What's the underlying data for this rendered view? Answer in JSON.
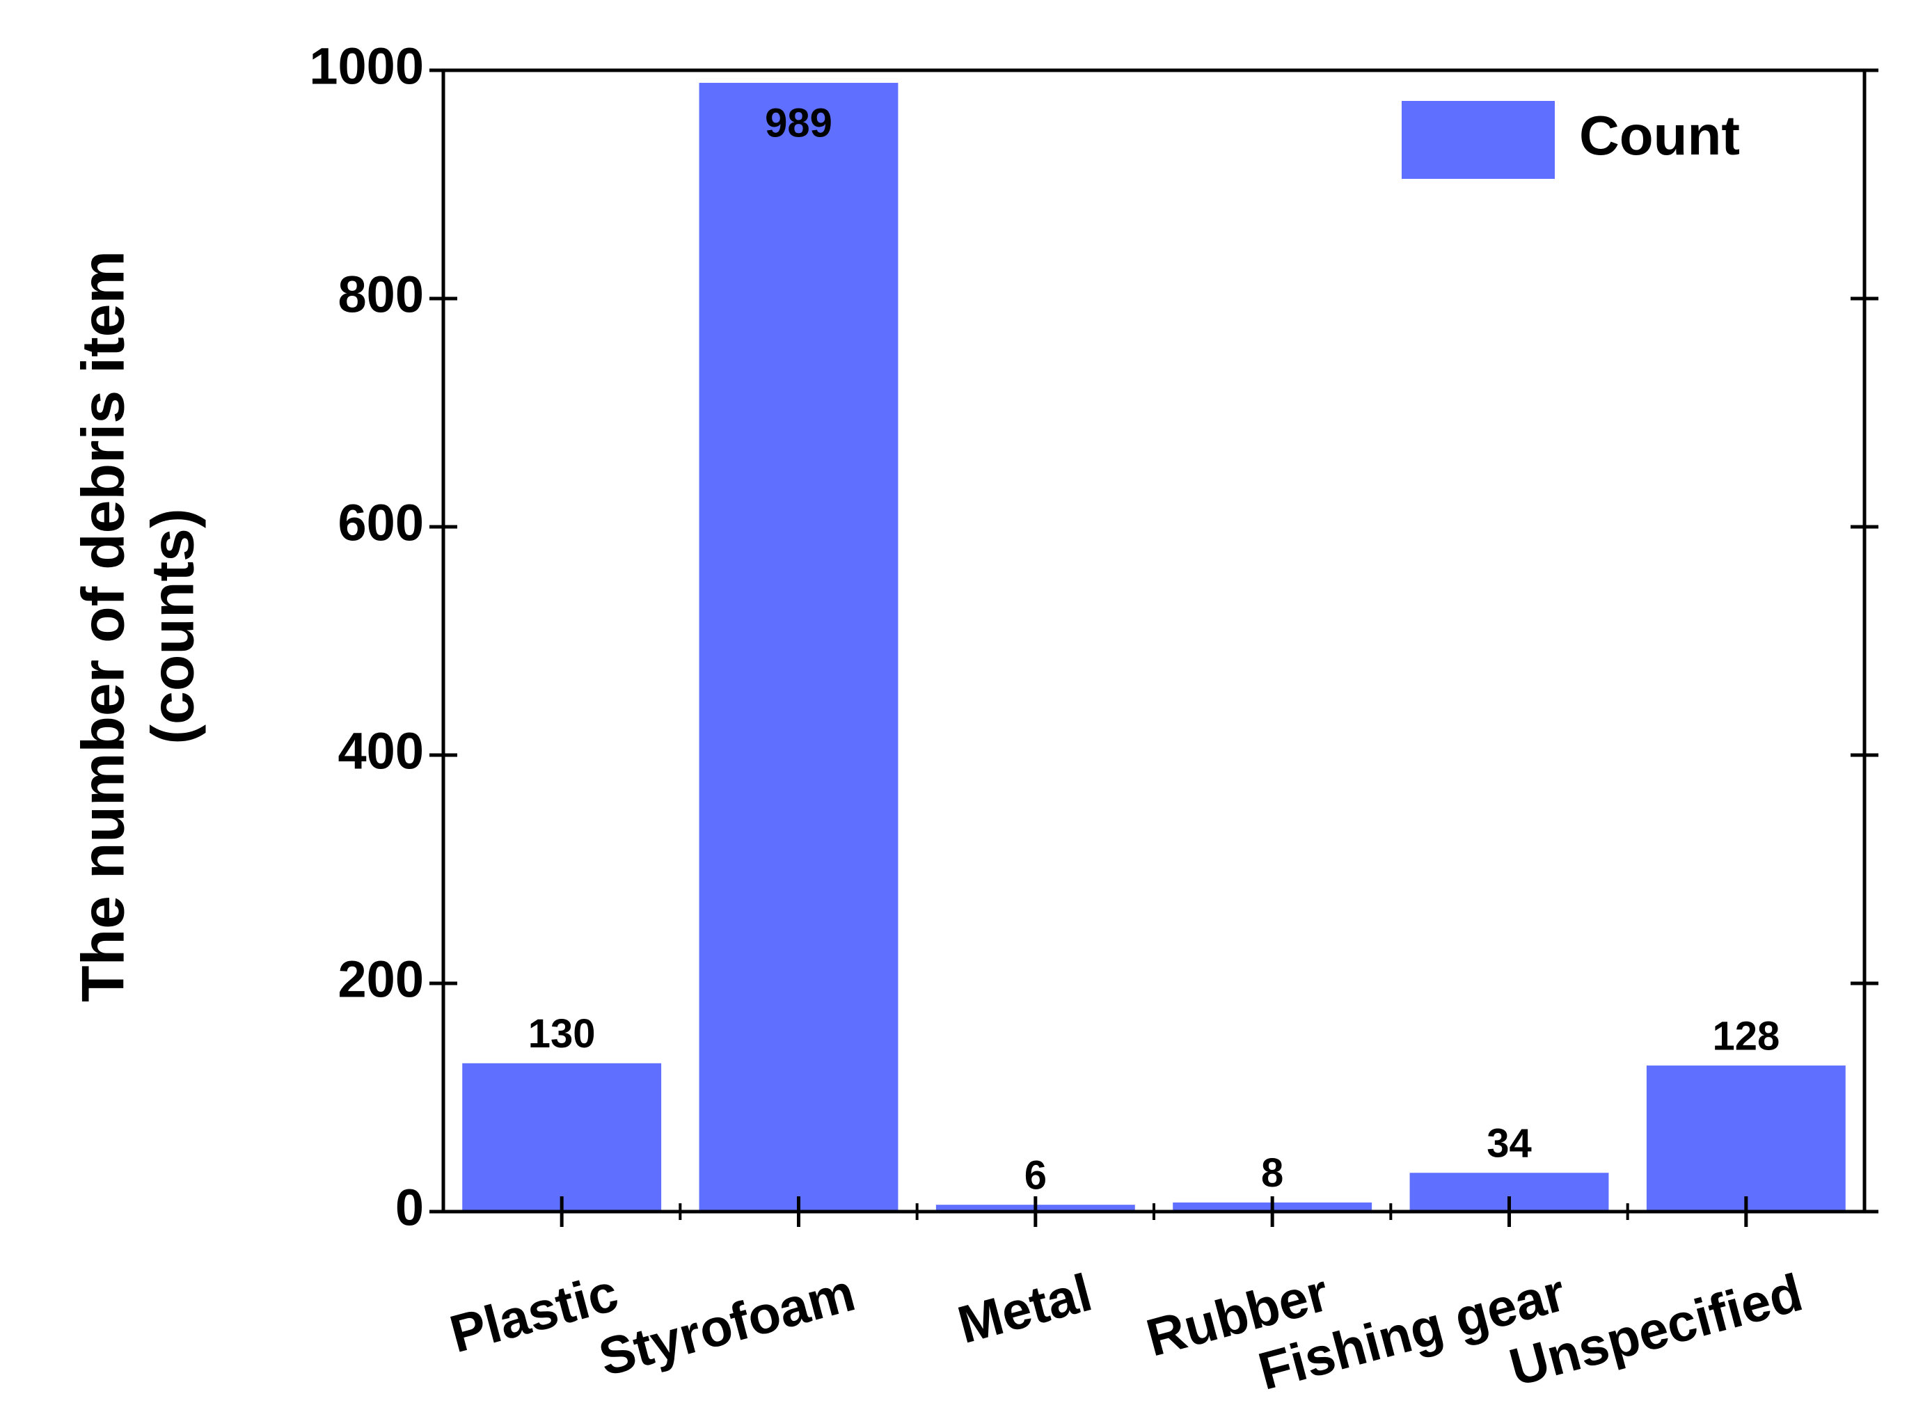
{
  "chart_data": {
    "type": "bar",
    "y_label": [
      "The number of debris item",
      "(counts)"
    ],
    "categories": [
      "Plastic",
      "Styrofoam",
      "Metal",
      "Rubber",
      "Fishing gear",
      "Unspecified"
    ],
    "series": [
      {
        "name": "Count",
        "color": "#5f6fff",
        "values": [
          130,
          989,
          6,
          8,
          34,
          128
        ]
      }
    ],
    "ylim": [
      0,
      1000
    ],
    "yticks": [
      0,
      200,
      400,
      600,
      800,
      1000
    ],
    "legend": "upper right",
    "grid": false
  }
}
